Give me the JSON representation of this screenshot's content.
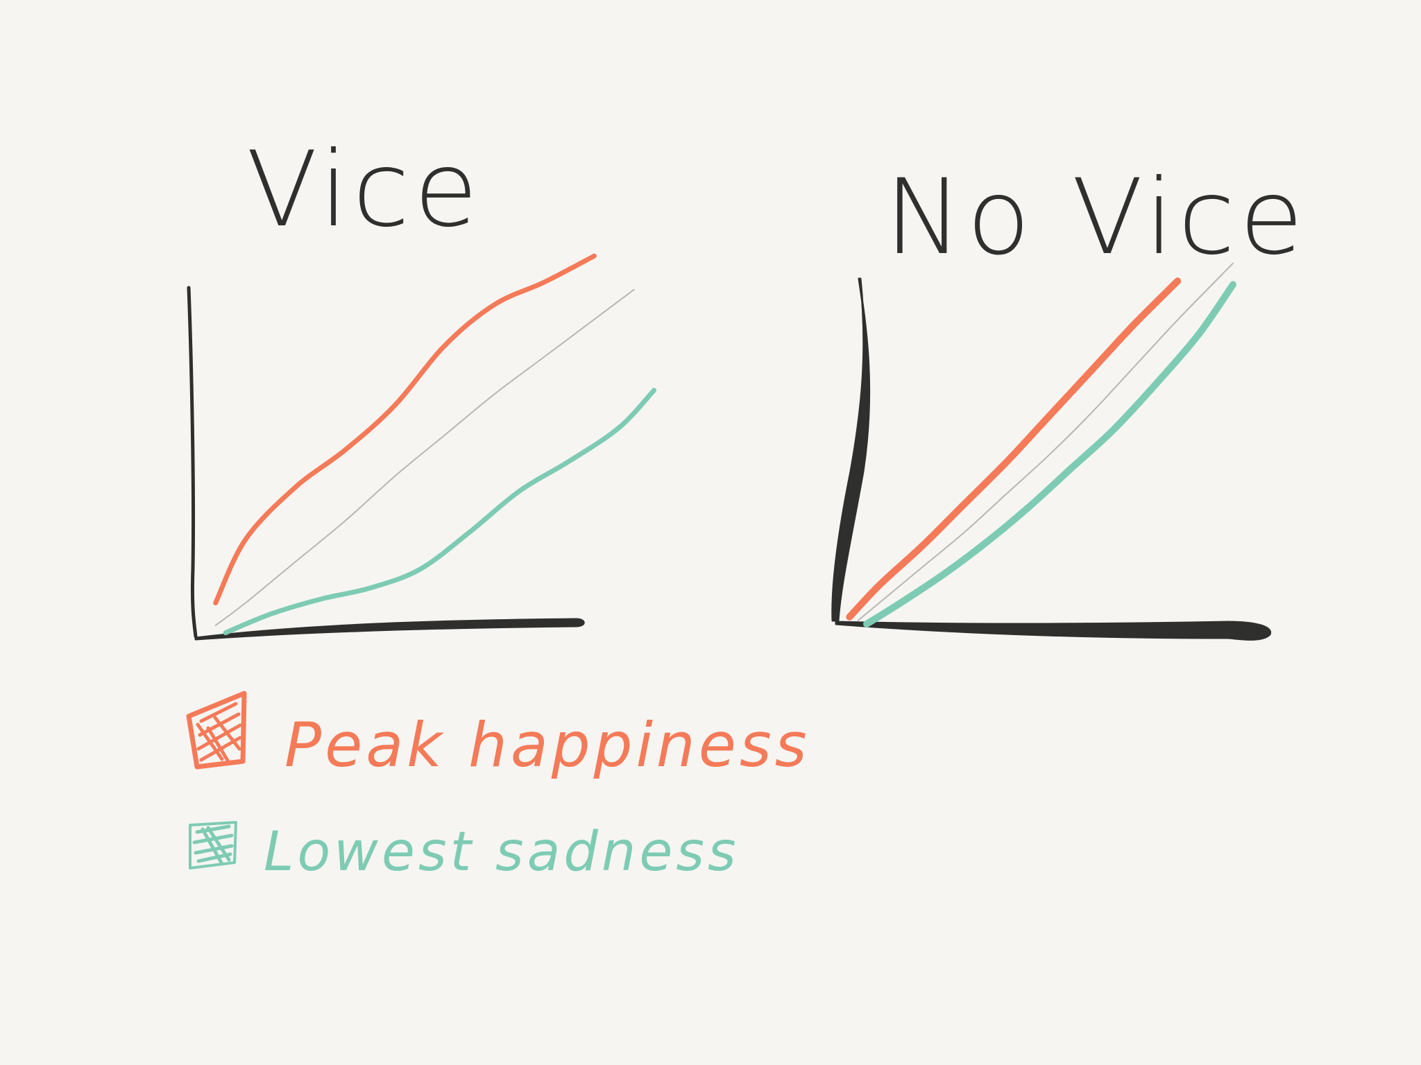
{
  "colors": {
    "background": "#f6f5f2",
    "axis": "#2f2f2d",
    "peak_happiness": "#f47a58",
    "lowest_sadness": "#7ecbb4",
    "reference": "#b8b6b2"
  },
  "legend": {
    "items": [
      {
        "label": "Peak happiness",
        "color": "#f47a58"
      },
      {
        "label": "Lowest sadness",
        "color": "#7ecbb4"
      }
    ]
  },
  "chart_data": [
    {
      "type": "line",
      "title": "Vice",
      "xlabel": "",
      "ylabel": "",
      "xlim": [
        0,
        10
      ],
      "ylim": [
        0,
        10
      ],
      "grid": false,
      "legend_placement": "below-left",
      "series": [
        {
          "name": "Peak happiness",
          "color": "#f47a58",
          "x": [
            0.4,
            1.0,
            2.0,
            3.0,
            4.0,
            5.0,
            6.0,
            7.0,
            8.0
          ],
          "y": [
            0.9,
            2.6,
            4.0,
            5.0,
            6.2,
            7.8,
            8.9,
            9.5,
            10.2
          ]
        },
        {
          "color": "#b8b6b2",
          "x": [
            0.4,
            1.0,
            2.0,
            3.0,
            4.0,
            5.0,
            6.0,
            7.0,
            8.0,
            8.8
          ],
          "y": [
            0.3,
            0.9,
            2.0,
            3.1,
            4.3,
            5.4,
            6.5,
            7.5,
            8.5,
            9.3
          ]
        },
        {
          "name": "Lowest sadness",
          "color": "#7ecbb4",
          "x": [
            0.6,
            1.5,
            2.5,
            3.5,
            4.5,
            5.5,
            6.5,
            7.5,
            8.5,
            9.2
          ],
          "y": [
            0.1,
            0.6,
            1.0,
            1.3,
            1.8,
            2.8,
            3.9,
            4.7,
            5.6,
            6.6
          ]
        }
      ]
    },
    {
      "type": "line",
      "title": "No Vice",
      "xlabel": "",
      "ylabel": "",
      "xlim": [
        0,
        10
      ],
      "ylim": [
        0,
        10
      ],
      "grid": false,
      "series": [
        {
          "name": "Peak happiness",
          "color": "#f47a58",
          "x": [
            0.3,
            1.0,
            2.0,
            3.0,
            4.0,
            5.0,
            6.0,
            7.0,
            8.0
          ],
          "y": [
            0.2,
            1.1,
            2.2,
            3.4,
            4.6,
            5.9,
            7.2,
            8.5,
            9.7
          ]
        },
        {
          "color": "#b8b6b2",
          "x": [
            0.5,
            1.0,
            2.0,
            3.0,
            4.0,
            5.0,
            6.0,
            7.0,
            8.0,
            9.3
          ],
          "y": [
            0.1,
            0.6,
            1.6,
            2.6,
            3.7,
            4.8,
            6.0,
            7.3,
            8.6,
            10.2
          ]
        },
        {
          "name": "Lowest sadness",
          "color": "#7ecbb4",
          "x": [
            0.7,
            1.5,
            2.5,
            3.5,
            4.5,
            5.5,
            6.5,
            7.5,
            8.5,
            9.3
          ],
          "y": [
            0.0,
            0.6,
            1.4,
            2.3,
            3.3,
            4.4,
            5.5,
            6.8,
            8.2,
            9.6
          ]
        }
      ]
    }
  ]
}
